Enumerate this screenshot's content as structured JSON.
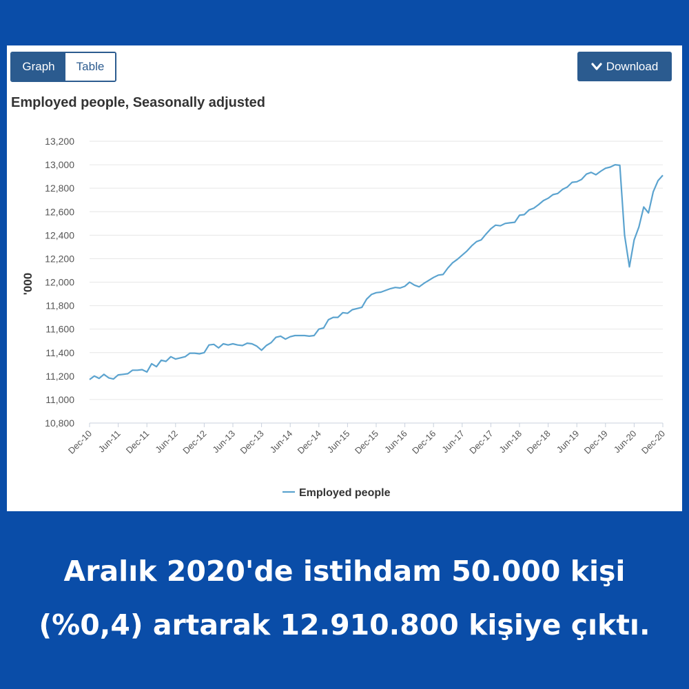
{
  "toolbar": {
    "graph_label": "Graph",
    "table_label": "Table",
    "download_label": "Download"
  },
  "caption": {
    "line1": "Aralık 2020'de istihdam 50.000 kişi",
    "line2": "(%0,4) artarak 12.910.800 kişiye çıktı."
  },
  "colors": {
    "line": "#5ba3cf",
    "button": "#2b5b8f",
    "background": "#0a4da8"
  },
  "chart_data": {
    "type": "line",
    "title": "Employed people, Seasonally adjusted",
    "ylabel": "'000",
    "xlabel": "",
    "ylim": [
      10800,
      13200
    ],
    "yticks": [
      10800,
      11000,
      11200,
      11400,
      11600,
      11800,
      12000,
      12200,
      12400,
      12600,
      12800,
      13000,
      13200
    ],
    "ytick_labels": [
      "10,800",
      "11,000",
      "11,200",
      "11,400",
      "11,600",
      "11,800",
      "12,000",
      "12,200",
      "12,400",
      "12,600",
      "12,800",
      "13,000",
      "13,200"
    ],
    "xtick_labels": [
      "Dec-10",
      "Jun-11",
      "Dec-11",
      "Jun-12",
      "Dec-12",
      "Jun-13",
      "Dec-13",
      "Jun-14",
      "Dec-14",
      "Jun-15",
      "Dec-15",
      "Jun-16",
      "Dec-16",
      "Jun-17",
      "Dec-17",
      "Jun-18",
      "Dec-18",
      "Jun-19",
      "Dec-19",
      "Jun-20",
      "Dec-20"
    ],
    "x_start": "Dec-10",
    "x_frequency": "monthly",
    "grid": true,
    "legend": "bottom",
    "series": [
      {
        "name": "Employed people",
        "color": "#5ba3cf",
        "values": [
          11170,
          11200,
          11180,
          11215,
          11185,
          11175,
          11210,
          11215,
          11220,
          11250,
          11250,
          11255,
          11235,
          11305,
          11280,
          11335,
          11325,
          11365,
          11345,
          11355,
          11365,
          11395,
          11395,
          11390,
          11400,
          11465,
          11470,
          11440,
          11475,
          11465,
          11475,
          11465,
          11460,
          11480,
          11475,
          11455,
          11420,
          11460,
          11485,
          11530,
          11540,
          11515,
          11535,
          11545,
          11545,
          11545,
          11540,
          11545,
          11600,
          11610,
          11680,
          11700,
          11700,
          11740,
          11735,
          11765,
          11775,
          11785,
          11855,
          11895,
          11910,
          11915,
          11930,
          11945,
          11955,
          11950,
          11965,
          12000,
          11975,
          11960,
          11990,
          12015,
          12040,
          12060,
          12065,
          12120,
          12165,
          12195,
          12230,
          12265,
          12310,
          12345,
          12360,
          12410,
          12455,
          12485,
          12480,
          12500,
          12505,
          12510,
          12570,
          12575,
          12615,
          12630,
          12660,
          12695,
          12715,
          12745,
          12755,
          12790,
          12810,
          12850,
          12855,
          12875,
          12920,
          12935,
          12915,
          12945,
          12970,
          12980,
          13000,
          12995,
          12400,
          12130,
          12360,
          12470,
          12640,
          12590,
          12770,
          12865,
          12910
        ]
      }
    ]
  }
}
